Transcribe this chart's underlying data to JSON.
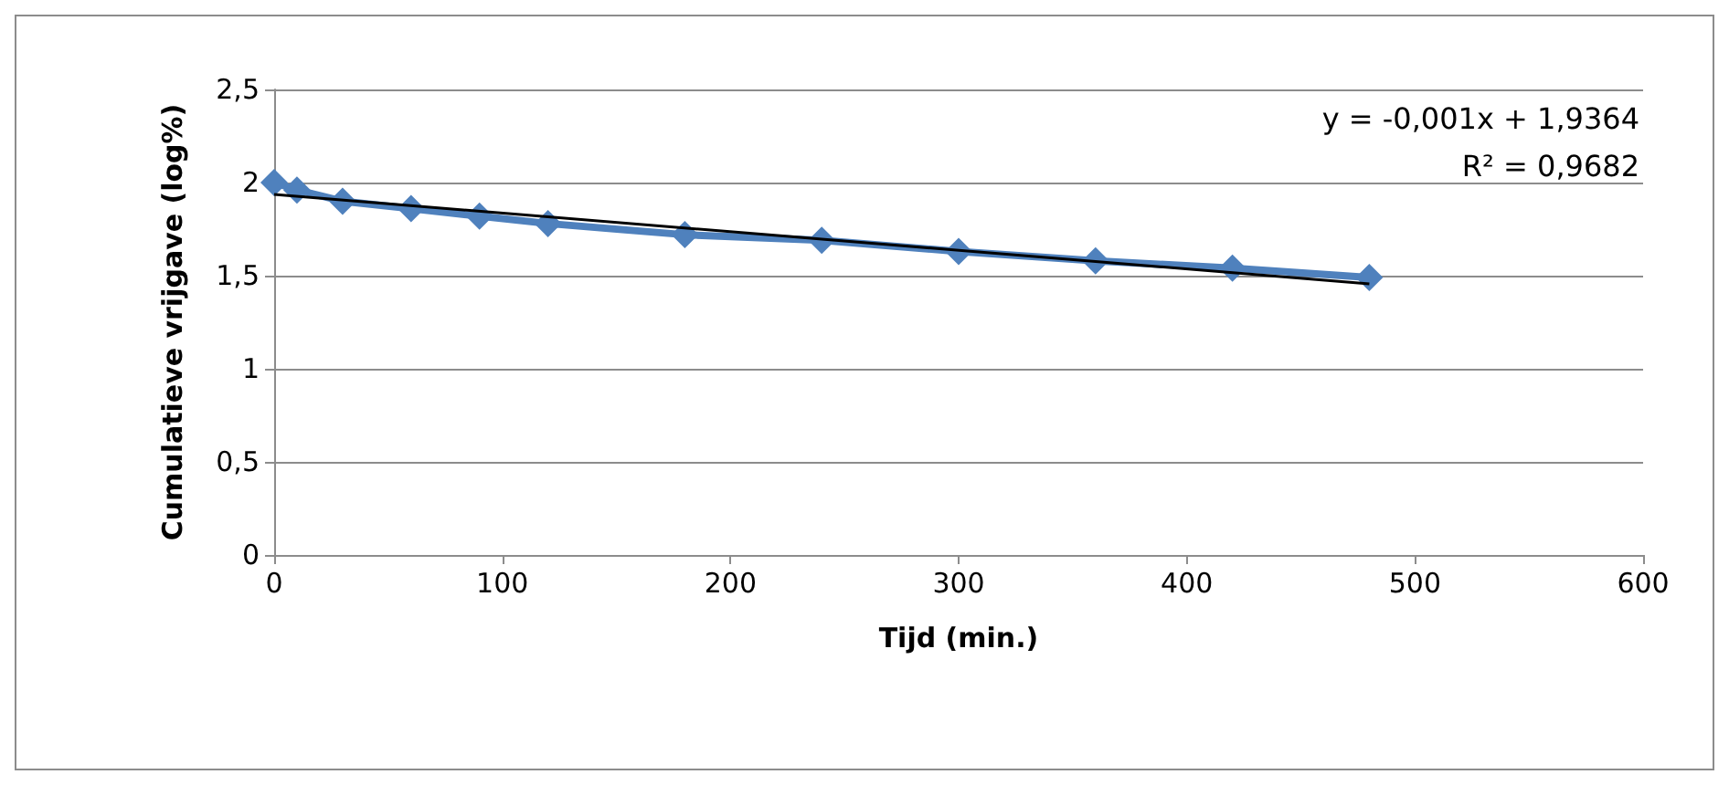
{
  "chart_data": {
    "type": "line",
    "xlabel": "Tijd (min.)",
    "ylabel": "Cumulatieve vrijgave (log%)",
    "x": [
      0,
      10,
      30,
      60,
      90,
      120,
      180,
      240,
      300,
      360,
      420,
      480
    ],
    "series": [
      {
        "color": "#4f81bd",
        "marker": "diamond",
        "values": [
          2.0,
          1.96,
          1.9,
          1.86,
          1.82,
          1.78,
          1.72,
          1.69,
          1.63,
          1.58,
          1.54,
          1.49
        ]
      },
      {
        "type": "line",
        "color": "#000000",
        "marker": "none",
        "x": [
          0,
          480
        ],
        "values": [
          1.9364,
          1.4564
        ]
      }
    ],
    "xlim": [
      0,
      600
    ],
    "xticks": [
      0,
      100,
      200,
      300,
      400,
      500,
      600
    ],
    "ylim": [
      0,
      2.5
    ],
    "yticks": [
      0,
      {
        "value": 0.5,
        "label": "0,5"
      },
      1,
      {
        "value": 1.5,
        "label": "1,5"
      },
      2,
      {
        "value": 2.5,
        "label": "2,5"
      }
    ],
    "grid": "y",
    "annotations": [
      "y = -0,001x + 1,9364",
      "R² = 0,9682"
    ]
  }
}
